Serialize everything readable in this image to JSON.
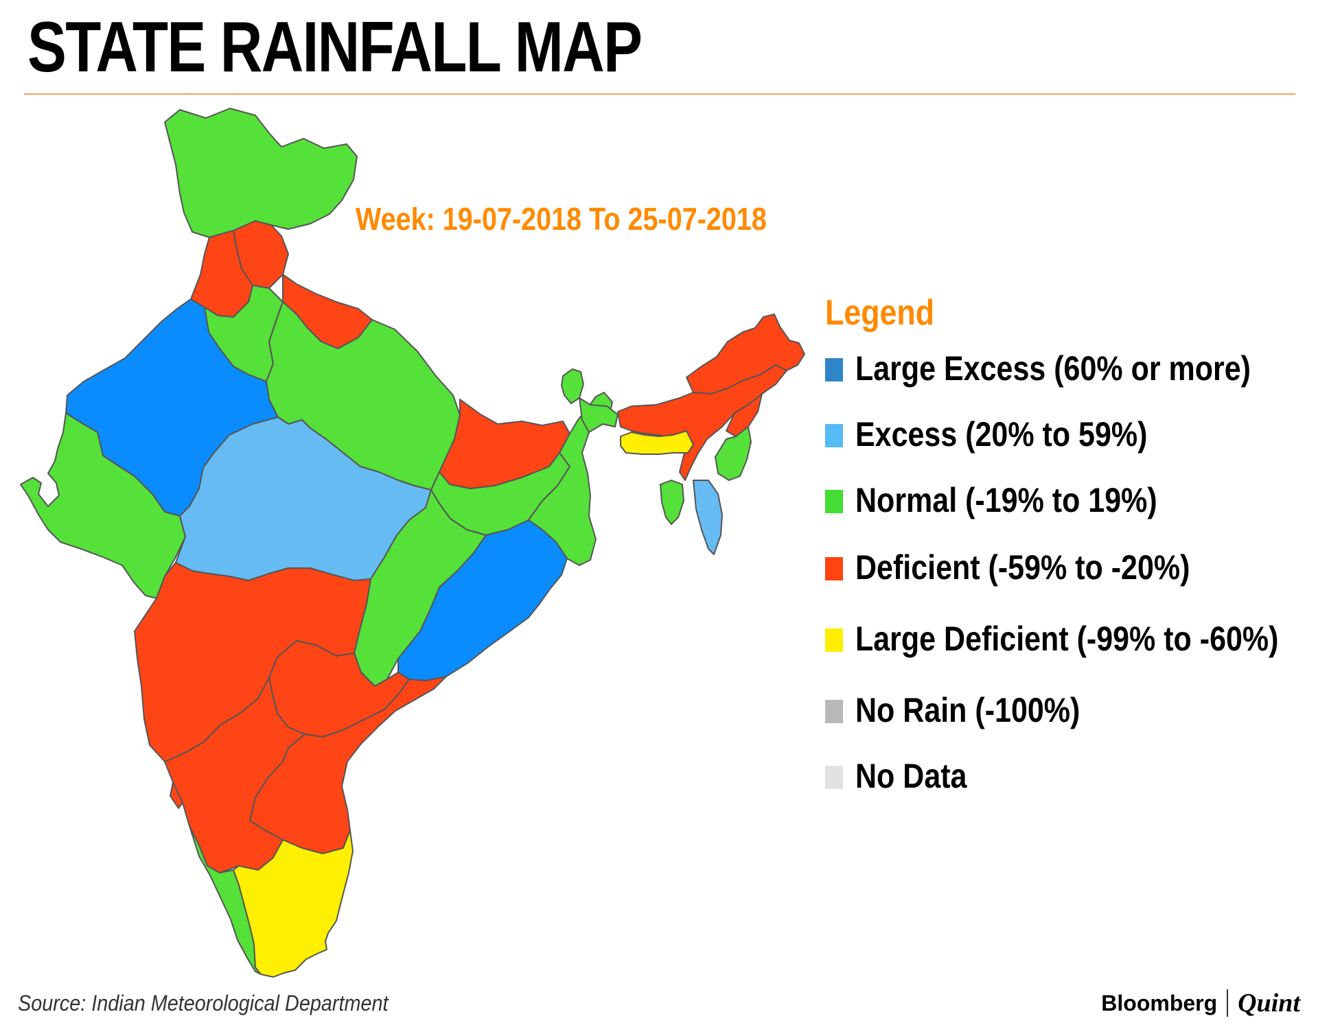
{
  "title": "STATE RAINFALL MAP",
  "week": "Week: 19-07-2018 To 25-07-2018",
  "legend": {
    "title": "Legend",
    "items": [
      {
        "label": "Large Excess (60% or more)",
        "color": "#2e86c8"
      },
      {
        "label": "Excess (20% to 59%)",
        "color": "#55bbf5"
      },
      {
        "label": "Normal (-19% to 19%)",
        "color": "#44dd33"
      },
      {
        "label": "Deficient (-59% to -20%)",
        "color": "#ff4411"
      },
      {
        "label": "Large Deficient (-99% to -60%)",
        "color": "#ffee00"
      },
      {
        "label": "No Rain (-100%)",
        "color": "#b8b8b8"
      },
      {
        "label": "No Data",
        "color": "#e2e2e2"
      }
    ]
  },
  "map_colors": {
    "large_excess": "#0a8cff",
    "excess": "#66bbf2",
    "normal": "#55e03a",
    "deficient": "#ff4516",
    "large_deficient": "#ffef00",
    "border": "#555555"
  },
  "source": "Source: Indian Meteorological Department",
  "brand": {
    "name1": "Bloomberg",
    "name2": "Quint"
  }
}
